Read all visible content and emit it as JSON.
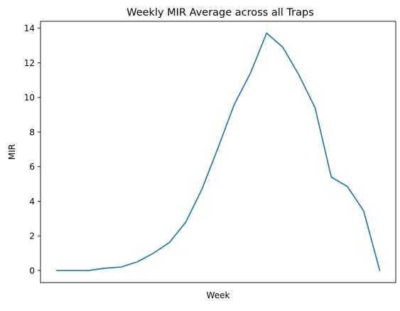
{
  "chart_data": {
    "type": "line",
    "title": "Weekly MIR Average across all Traps",
    "xlabel": "Week",
    "ylabel": "MIR",
    "ylim": [
      -0.7,
      14.4
    ],
    "yticks": [
      "0",
      "2",
      "4",
      "6",
      "8",
      "10",
      "12",
      "14"
    ],
    "grid": false,
    "series": [
      {
        "color": "#1f77b4",
        "values": [
          0,
          0,
          0,
          0.13,
          0.2,
          0.5,
          1.0,
          1.63,
          2.8,
          4.7,
          7.1,
          9.6,
          11.4,
          13.72,
          12.9,
          11.3,
          9.4,
          5.4,
          4.85,
          3.45,
          0
        ]
      }
    ]
  }
}
